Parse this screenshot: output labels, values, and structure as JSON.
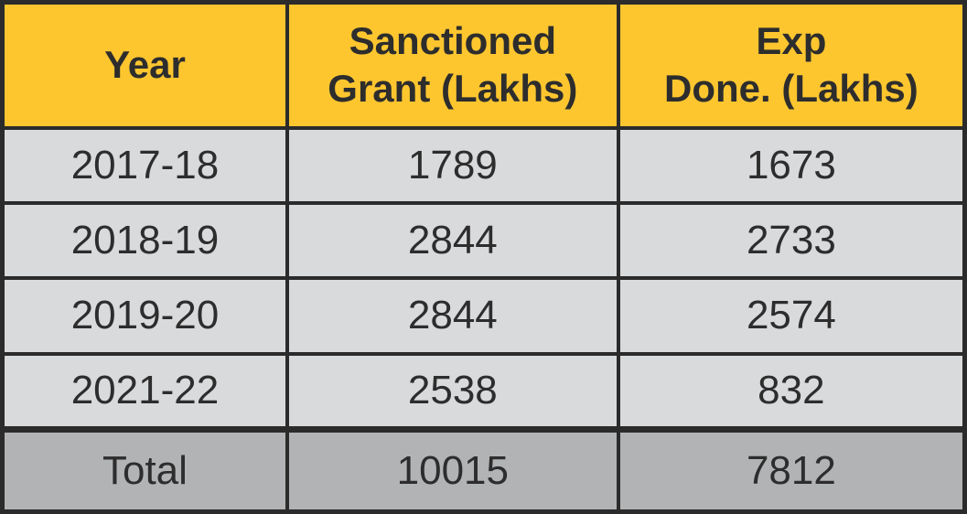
{
  "theme": {
    "header_bg": "#fdc62f",
    "row_bg": "#d9dadc",
    "total_bg": "#b2b3b5",
    "border": "#2b2b2b",
    "text": "#2d2d2d"
  },
  "table": {
    "header": {
      "year": "Year",
      "sanctioned": "Sanctioned\nGrant (Lakhs)",
      "expenditure": "Exp\nDone. (Lakhs)"
    },
    "rows": [
      {
        "year": "2017-18",
        "sanctioned": "1789",
        "expenditure": "1673"
      },
      {
        "year": "2018-19",
        "sanctioned": "2844",
        "expenditure": "2733"
      },
      {
        "year": "2019-20",
        "sanctioned": "2844",
        "expenditure": "2574"
      },
      {
        "year": "2021-22",
        "sanctioned": "2538",
        "expenditure": "832"
      }
    ],
    "total": {
      "label": "Total",
      "sanctioned": "10015",
      "expenditure": "7812"
    }
  },
  "chart_data": {
    "type": "table",
    "columns": [
      "Year",
      "Sanctioned Grant (Lakhs)",
      "Exp Done. (Lakhs)"
    ],
    "rows": [
      [
        "2017-18",
        1789,
        1673
      ],
      [
        "2018-19",
        2844,
        2733
      ],
      [
        "2019-20",
        2844,
        2574
      ],
      [
        "2021-22",
        2538,
        832
      ],
      [
        "Total",
        10015,
        7812
      ]
    ],
    "header_bg": "#fdc62f",
    "row_bg": "#d9dadc",
    "total_row_bg": "#b2b3b5"
  }
}
